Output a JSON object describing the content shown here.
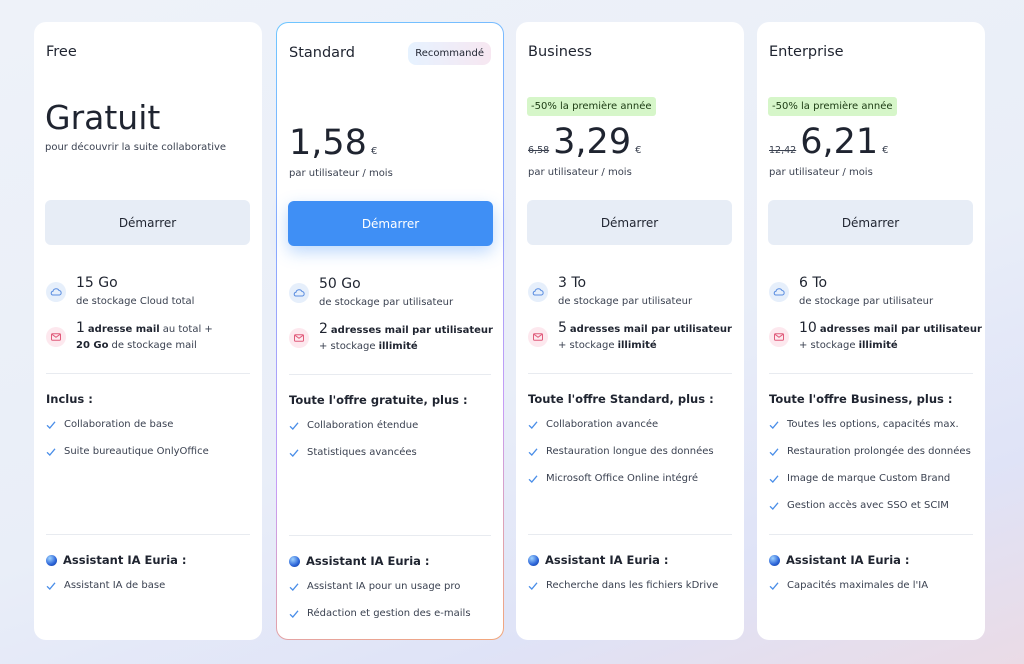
{
  "plans": [
    {
      "name": "Free",
      "price": "Gratuit",
      "price_note": "pour découvrir la suite collaborative",
      "button": "Démarrer",
      "storage": {
        "amount": "15 Go",
        "text": "de stockage Cloud total"
      },
      "mail": [
        [
          {
            "text": "1",
            "style": "count"
          },
          {
            "text": "adresse mail",
            "style": "bold"
          },
          {
            "text": "au total +",
            "style": "normal"
          }
        ],
        [
          {
            "text": "20 Go",
            "style": "bold"
          },
          {
            "text": "de stockage mail",
            "style": "normal"
          }
        ]
      ],
      "features_title": "Inclus :",
      "features": [
        "Collaboration de base",
        "Suite bureautique OnlyOffice"
      ],
      "ai_title": "Assistant IA Euria :",
      "ai_features": [
        "Assistant IA de base"
      ]
    },
    {
      "name": "Standard",
      "badge": "Recommandé",
      "highlighted": true,
      "price": "1,58",
      "currency": "€",
      "price_note": "par utilisateur / mois",
      "button": "Démarrer",
      "storage": {
        "amount": "50 Go",
        "text": "de stockage par utilisateur"
      },
      "mail": [
        [
          {
            "text": "2",
            "style": "count"
          },
          {
            "text": "adresses mail par utilisateur",
            "style": "bold"
          }
        ],
        [
          {
            "text": "+ stockage",
            "style": "normal"
          },
          {
            "text": "illimité",
            "style": "bold"
          }
        ]
      ],
      "features_title": "Toute l'offre gratuite, plus :",
      "features": [
        "Collaboration étendue",
        "Statistiques avancées"
      ],
      "ai_title": "Assistant IA Euria :",
      "ai_features": [
        "Assistant IA pour un usage pro",
        "Rédaction et gestion des e-mails"
      ]
    },
    {
      "name": "Business",
      "promo": "-50% la première année",
      "old_price": "6,58",
      "price": "3,29",
      "currency": "€",
      "price_note": "par utilisateur / mois",
      "button": "Démarrer",
      "storage": {
        "amount": "3 To",
        "text": "de stockage par utilisateur"
      },
      "mail": [
        [
          {
            "text": "5",
            "style": "count"
          },
          {
            "text": "adresses mail par utilisateur",
            "style": "bold"
          }
        ],
        [
          {
            "text": "+ stockage",
            "style": "normal"
          },
          {
            "text": "illimité",
            "style": "bold"
          }
        ]
      ],
      "features_title": "Toute l'offre Standard, plus :",
      "features": [
        "Collaboration avancée",
        "Restauration longue des données",
        "Microsoft Office Online intégré"
      ],
      "ai_title": "Assistant IA Euria :",
      "ai_features": [
        "Recherche dans les fichiers kDrive"
      ]
    },
    {
      "name": "Enterprise",
      "promo": "-50% la première année",
      "old_price": "12,42",
      "price": "6,21",
      "currency": "€",
      "price_note": "par utilisateur / mois",
      "button": "Démarrer",
      "storage": {
        "amount": "6 To",
        "text": "de stockage par utilisateur"
      },
      "mail": [
        [
          {
            "text": "10",
            "style": "count"
          },
          {
            "text": "adresses mail par utilisateur",
            "style": "bold"
          }
        ],
        [
          {
            "text": "+ stockage",
            "style": "normal"
          },
          {
            "text": "illimité",
            "style": "bold"
          }
        ]
      ],
      "features_title": "Toute l'offre Business, plus :",
      "features": [
        "Toutes les options, capacités max.",
        "Restauration prolongée des données",
        "Image de marque Custom Brand",
        "Gestion accès avec SSO et SCIM"
      ],
      "ai_title": "Assistant IA Euria :",
      "ai_features": [
        "Capacités maximales de l'IA"
      ]
    }
  ]
}
